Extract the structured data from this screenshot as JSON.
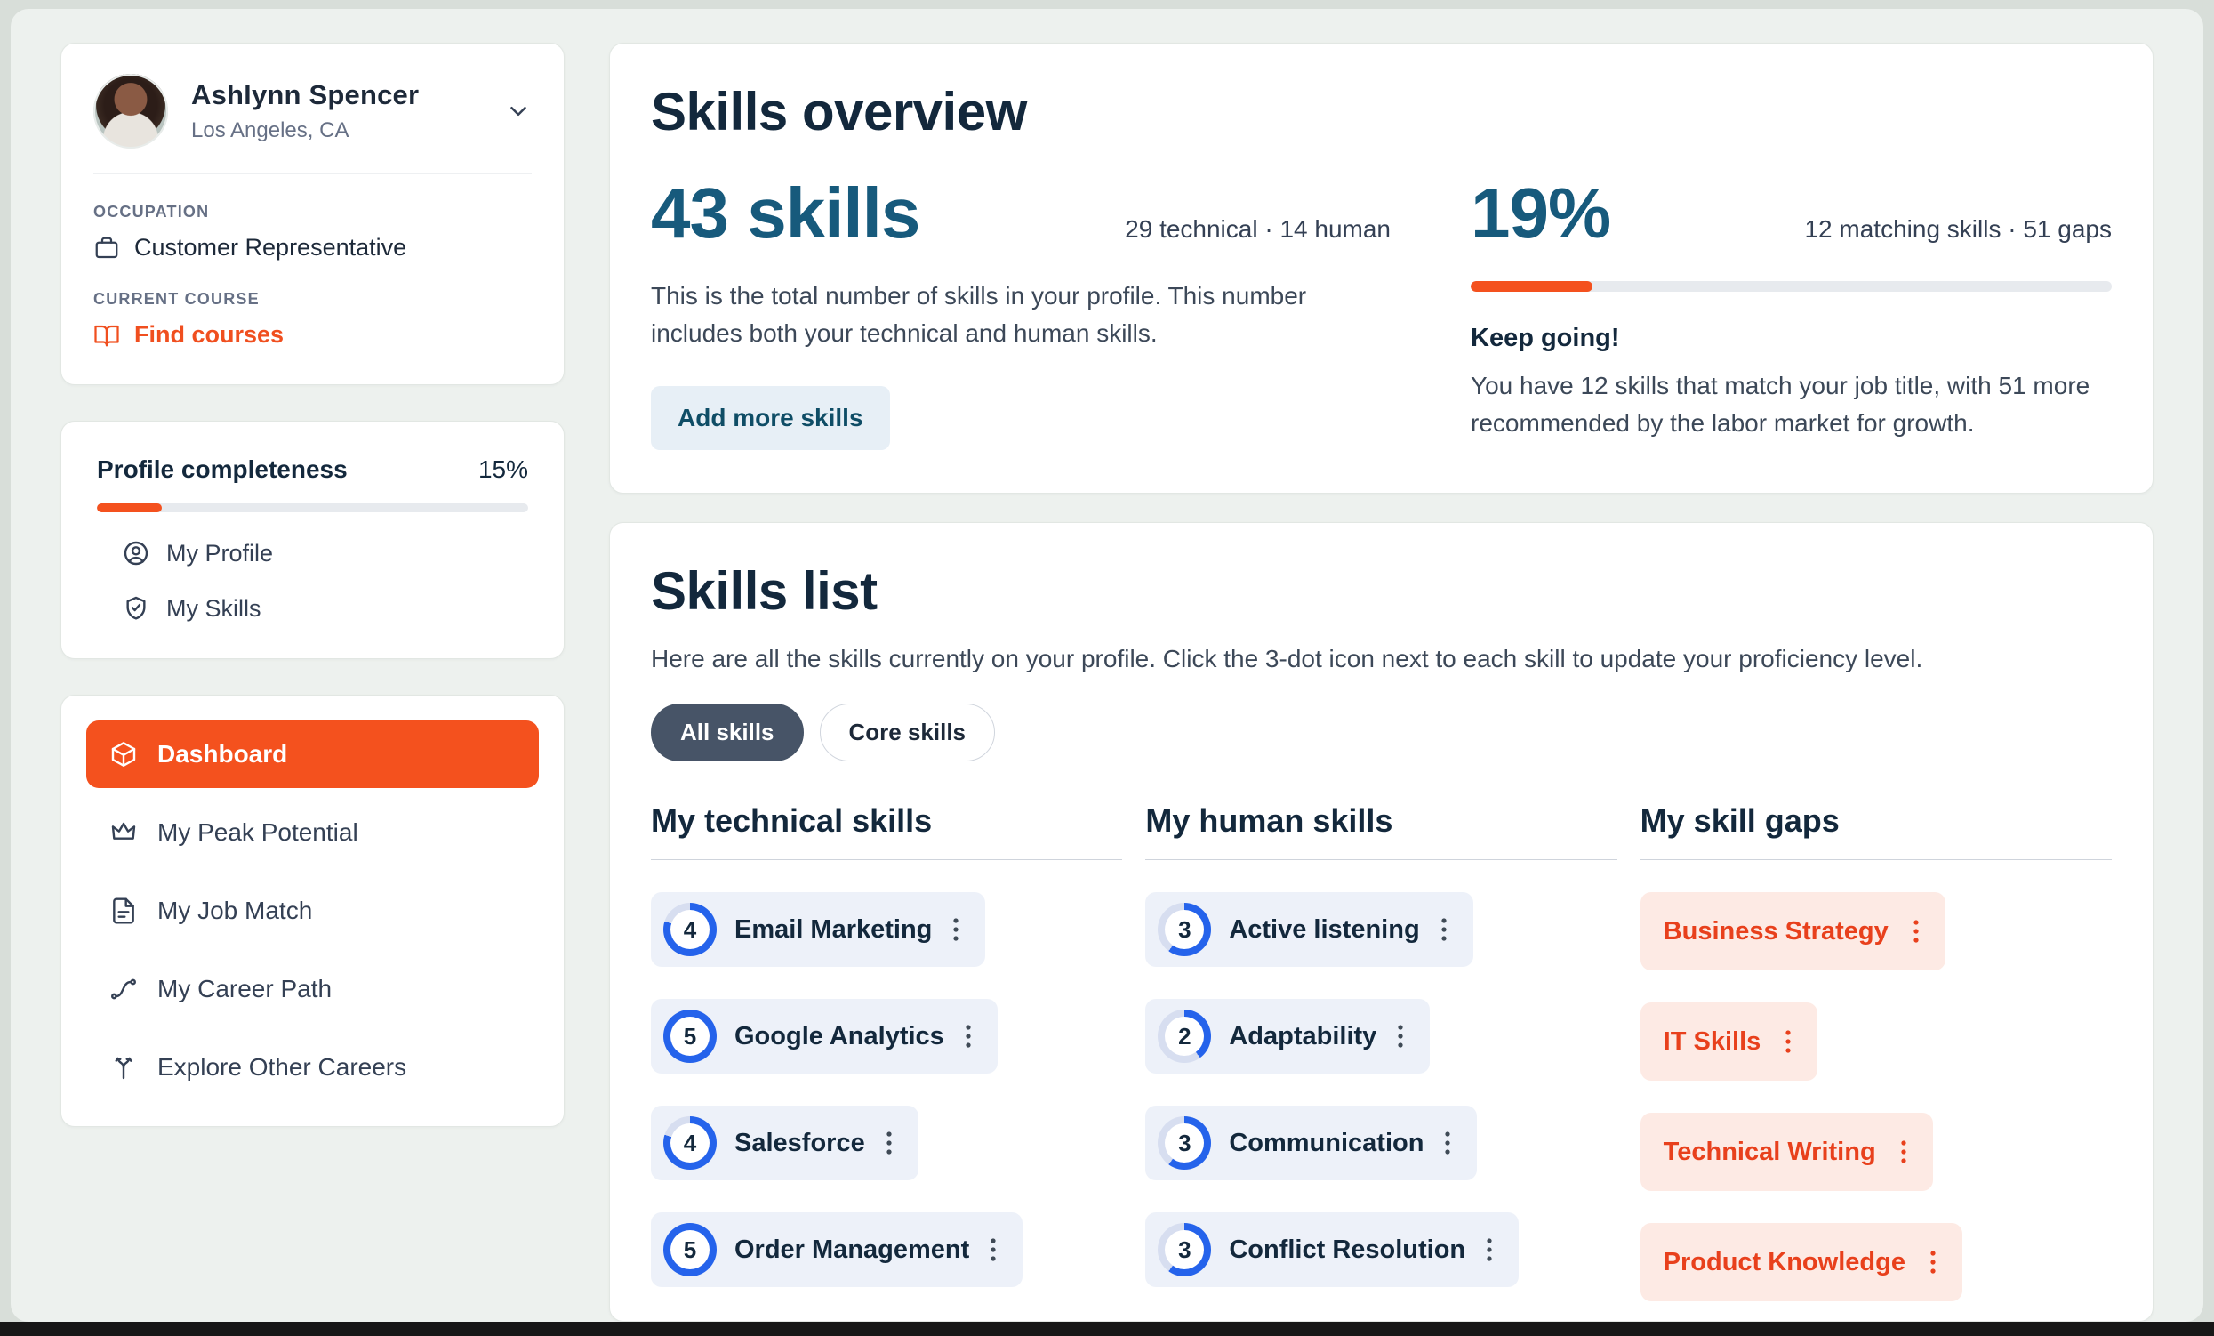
{
  "colors": {
    "accent": "#F4511E",
    "ring": "#2563EB",
    "ring_track": "#D7DEF0",
    "gap_text": "#E8401C"
  },
  "sidebar": {
    "profile": {
      "name": "Ashlynn Spencer",
      "location": "Los Angeles, CA",
      "occupation_label": "OCCUPATION",
      "occupation": "Customer Representative",
      "course_label": "CURRENT COURSE",
      "course_link": "Find courses"
    },
    "completeness": {
      "label": "Profile completeness",
      "value": "15%",
      "percent": 15,
      "items": [
        {
          "label": "My Profile"
        },
        {
          "label": "My Skills"
        }
      ]
    },
    "nav": {
      "items": [
        {
          "label": "Dashboard",
          "active": true
        },
        {
          "label": "My Peak Potential",
          "active": false
        },
        {
          "label": "My Job Match",
          "active": false
        },
        {
          "label": "My Career Path",
          "active": false
        },
        {
          "label": "Explore Other Careers",
          "active": false
        }
      ]
    }
  },
  "overview": {
    "title": "Skills overview",
    "skills_count": "43 skills",
    "skills_breakdown": "29 technical · 14 human",
    "description": "This is the total number of skills in your profile. This number includes both your technical and human skills.",
    "add_button": "Add more skills",
    "match_percent": "19%",
    "match_breakdown": "12 matching skills · 51 gaps",
    "progress_percent": 19,
    "encouragement": "Keep going!",
    "match_description": "You have 12 skills that match your job title, with 51 more recommended by the labor market for growth."
  },
  "skills_list": {
    "title": "Skills list",
    "description": "Here are all the skills currently on your profile. Click the 3-dot icon next to each skill to update your proficiency level.",
    "tabs": [
      {
        "label": "All skills",
        "active": true
      },
      {
        "label": "Core skills",
        "active": false
      }
    ],
    "columns": [
      {
        "title": "My technical skills",
        "skills": [
          {
            "name": "Email Marketing",
            "level": 4,
            "max": 5
          },
          {
            "name": "Google Analytics",
            "level": 5,
            "max": 5
          },
          {
            "name": "Salesforce",
            "level": 4,
            "max": 5
          },
          {
            "name": "Order Management",
            "level": 5,
            "max": 5
          }
        ]
      },
      {
        "title": "My human skills",
        "skills": [
          {
            "name": "Active listening",
            "level": 3,
            "max": 5
          },
          {
            "name": "Adaptability",
            "level": 2,
            "max": 5
          },
          {
            "name": "Communication",
            "level": 3,
            "max": 5
          },
          {
            "name": "Conflict Resolution",
            "level": 3,
            "max": 5
          }
        ]
      },
      {
        "title": "My skill gaps",
        "skills": [
          {
            "name": "Business Strategy"
          },
          {
            "name": "IT Skills"
          },
          {
            "name": "Technical Writing"
          },
          {
            "name": "Product Knowledge"
          }
        ]
      }
    ]
  }
}
